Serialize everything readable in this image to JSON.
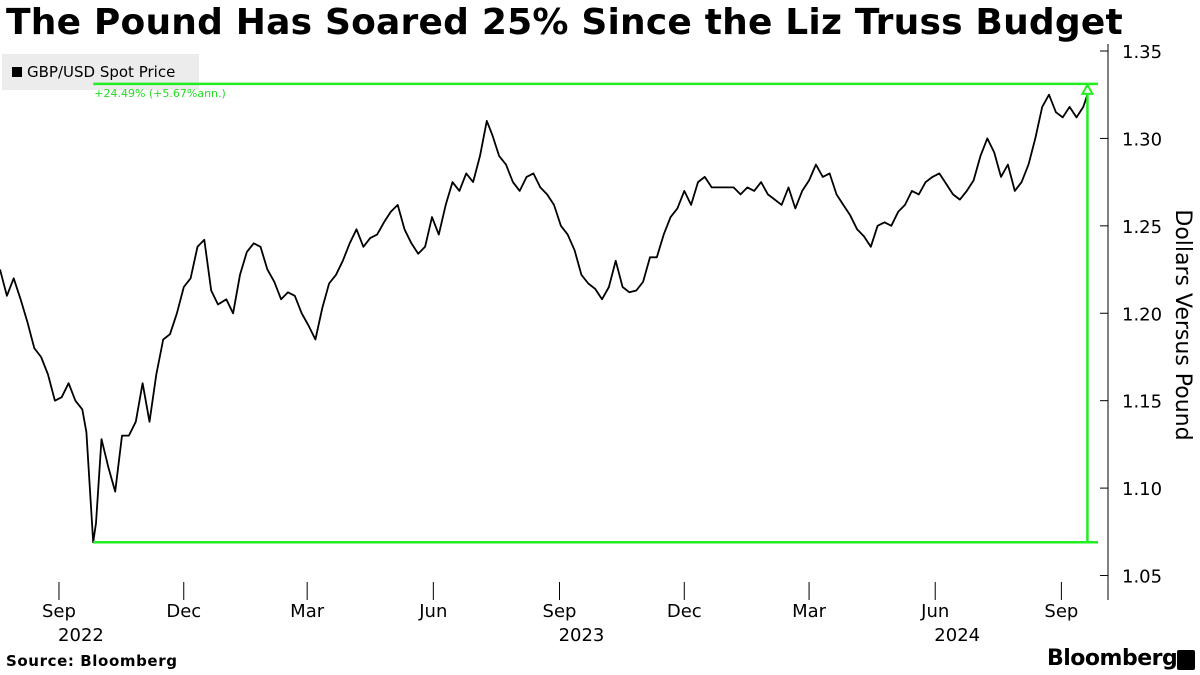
{
  "title": "The Pound Has Soared 25% Since the Liz Truss Budget",
  "legend_label": "GBP/USD Spot Price",
  "source": "Source: Bloomberg",
  "brand": "Bloomberg",
  "colors": {
    "line": "#000000",
    "annotation": "#22ee22",
    "legend_bg": "#ececec"
  },
  "chart_data": {
    "type": "line",
    "series": [
      {
        "name": "GBP/USD Spot Price",
        "x": [
          "2022-07-20",
          "2022-07-25",
          "2022-07-30",
          "2022-08-04",
          "2022-08-09",
          "2022-08-14",
          "2022-08-19",
          "2022-08-24",
          "2022-08-29",
          "2022-09-03",
          "2022-09-08",
          "2022-09-13",
          "2022-09-18",
          "2022-09-21",
          "2022-09-26",
          "2022-09-28",
          "2022-10-02",
          "2022-10-07",
          "2022-10-12",
          "2022-10-17",
          "2022-10-22",
          "2022-10-27",
          "2022-11-01",
          "2022-11-06",
          "2022-11-11",
          "2022-11-16",
          "2022-11-21",
          "2022-11-26",
          "2022-12-01",
          "2022-12-06",
          "2022-12-11",
          "2022-12-16",
          "2022-12-21",
          "2022-12-26",
          "2023-01-01",
          "2023-01-06",
          "2023-01-11",
          "2023-01-16",
          "2023-01-21",
          "2023-01-26",
          "2023-01-31",
          "2023-02-05",
          "2023-02-10",
          "2023-02-15",
          "2023-02-20",
          "2023-02-25",
          "2023-03-02",
          "2023-03-07",
          "2023-03-12",
          "2023-03-17",
          "2023-03-22",
          "2023-03-27",
          "2023-04-01",
          "2023-04-06",
          "2023-04-11",
          "2023-04-16",
          "2023-04-21",
          "2023-04-26",
          "2023-05-01",
          "2023-05-06",
          "2023-05-11",
          "2023-05-16",
          "2023-05-21",
          "2023-05-26",
          "2023-05-31",
          "2023-06-05",
          "2023-06-10",
          "2023-06-15",
          "2023-06-20",
          "2023-06-25",
          "2023-06-30",
          "2023-07-05",
          "2023-07-10",
          "2023-07-14",
          "2023-07-19",
          "2023-07-24",
          "2023-07-29",
          "2023-08-03",
          "2023-08-08",
          "2023-08-13",
          "2023-08-18",
          "2023-08-23",
          "2023-08-28",
          "2023-09-02",
          "2023-09-07",
          "2023-09-12",
          "2023-09-17",
          "2023-09-22",
          "2023-09-27",
          "2023-10-02",
          "2023-10-07",
          "2023-10-12",
          "2023-10-17",
          "2023-10-22",
          "2023-10-27",
          "2023-11-01",
          "2023-11-06",
          "2023-11-11",
          "2023-11-16",
          "2023-11-21",
          "2023-11-26",
          "2023-12-01",
          "2023-12-06",
          "2023-12-11",
          "2023-12-16",
          "2023-12-21",
          "2023-12-26",
          "2024-01-01",
          "2024-01-06",
          "2024-01-11",
          "2024-01-16",
          "2024-01-21",
          "2024-01-26",
          "2024-01-31",
          "2024-02-05",
          "2024-02-10",
          "2024-02-15",
          "2024-02-20",
          "2024-02-25",
          "2024-03-01",
          "2024-03-06",
          "2024-03-11",
          "2024-03-16",
          "2024-03-21",
          "2024-03-26",
          "2024-03-31",
          "2024-04-05",
          "2024-04-10",
          "2024-04-15",
          "2024-04-20",
          "2024-04-25",
          "2024-04-30",
          "2024-05-05",
          "2024-05-10",
          "2024-05-15",
          "2024-05-20",
          "2024-05-25",
          "2024-05-30",
          "2024-06-04",
          "2024-06-09",
          "2024-06-14",
          "2024-06-19",
          "2024-06-24",
          "2024-06-29",
          "2024-07-04",
          "2024-07-09",
          "2024-07-14",
          "2024-07-19",
          "2024-07-24",
          "2024-07-29",
          "2024-08-03",
          "2024-08-08",
          "2024-08-13",
          "2024-08-18",
          "2024-08-23",
          "2024-08-28",
          "2024-09-02",
          "2024-09-07",
          "2024-09-12",
          "2024-09-17",
          "2024-09-20"
        ],
        "y": [
          1.225,
          1.21,
          1.22,
          1.208,
          1.195,
          1.18,
          1.175,
          1.165,
          1.15,
          1.152,
          1.16,
          1.15,
          1.145,
          1.132,
          1.069,
          1.08,
          1.128,
          1.112,
          1.098,
          1.13,
          1.13,
          1.138,
          1.16,
          1.138,
          1.165,
          1.185,
          1.188,
          1.2,
          1.215,
          1.22,
          1.238,
          1.242,
          1.213,
          1.205,
          1.208,
          1.2,
          1.222,
          1.235,
          1.24,
          1.238,
          1.225,
          1.218,
          1.208,
          1.212,
          1.21,
          1.2,
          1.193,
          1.185,
          1.203,
          1.217,
          1.222,
          1.23,
          1.24,
          1.248,
          1.238,
          1.243,
          1.245,
          1.252,
          1.258,
          1.262,
          1.248,
          1.24,
          1.234,
          1.238,
          1.255,
          1.245,
          1.262,
          1.275,
          1.27,
          1.28,
          1.275,
          1.29,
          1.31,
          1.302,
          1.29,
          1.285,
          1.275,
          1.27,
          1.278,
          1.28,
          1.272,
          1.268,
          1.262,
          1.25,
          1.245,
          1.236,
          1.222,
          1.217,
          1.214,
          1.208,
          1.215,
          1.23,
          1.215,
          1.212,
          1.213,
          1.218,
          1.232,
          1.232,
          1.245,
          1.255,
          1.26,
          1.27,
          1.262,
          1.275,
          1.278,
          1.272,
          1.272,
          1.272,
          1.272,
          1.268,
          1.272,
          1.27,
          1.275,
          1.268,
          1.265,
          1.262,
          1.272,
          1.26,
          1.27,
          1.276,
          1.285,
          1.278,
          1.28,
          1.268,
          1.262,
          1.256,
          1.248,
          1.244,
          1.238,
          1.25,
          1.252,
          1.25,
          1.258,
          1.262,
          1.27,
          1.268,
          1.275,
          1.278,
          1.28,
          1.274,
          1.268,
          1.265,
          1.27,
          1.276,
          1.29,
          1.3,
          1.292,
          1.278,
          1.285,
          1.27,
          1.275,
          1.285,
          1.3,
          1.318,
          1.325,
          1.315,
          1.312,
          1.318,
          1.312,
          1.318,
          1.325
        ]
      }
    ],
    "x_ticks": [
      {
        "date": "2022-09-01",
        "label": "Sep",
        "year": "2022"
      },
      {
        "date": "2022-12-01",
        "label": "Dec"
      },
      {
        "date": "2023-03-01",
        "label": "Mar"
      },
      {
        "date": "2023-06-01",
        "label": "Jun"
      },
      {
        "date": "2023-09-01",
        "label": "Sep",
        "year": "2023"
      },
      {
        "date": "2023-12-01",
        "label": "Dec"
      },
      {
        "date": "2024-03-01",
        "label": "Mar"
      },
      {
        "date": "2024-06-01",
        "label": "Jun",
        "year": "2024"
      },
      {
        "date": "2024-09-01",
        "label": "Sep"
      }
    ],
    "y_ticks": [
      "1.05",
      "1.10",
      "1.15",
      "1.20",
      "1.25",
      "1.30",
      "1.35"
    ],
    "ylim": [
      1.05,
      1.35
    ],
    "xlim": [
      "2022-07-20",
      "2024-10-05"
    ],
    "ylabel": "Dollars Versus Pound",
    "xlabel": "",
    "grid": false,
    "y_axis_side": "right",
    "legend_position": "top-left",
    "annotation": {
      "text": "+24.49% (+5.67%ann.)",
      "from": {
        "date": "2022-09-26",
        "value": 1.069
      },
      "to": {
        "date": "2024-09-20",
        "value": 1.3312
      }
    }
  }
}
